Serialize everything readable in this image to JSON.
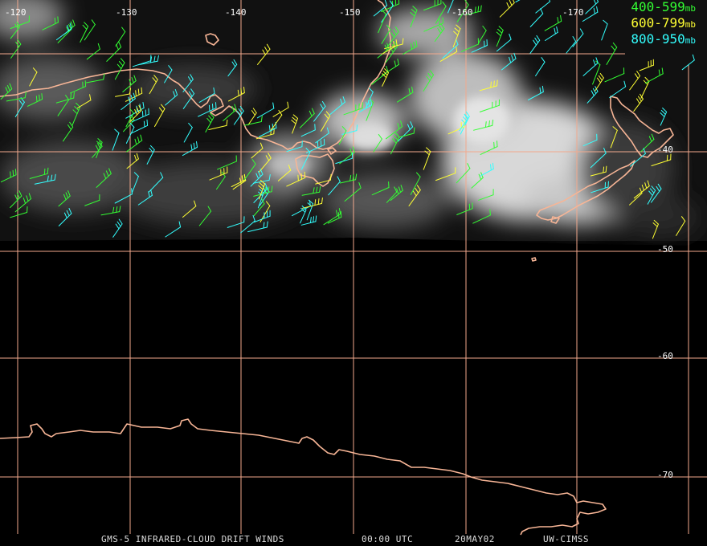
{
  "colors": {
    "grid": "#f2a98d",
    "coast": "#f7b596",
    "layer_400_599": "#33ff33",
    "layer_600_799": "#ffff33",
    "layer_800_950": "#33ffff"
  },
  "longitude_labels": [
    "-120",
    "-130",
    "-140",
    "-150",
    "-160",
    "-170"
  ],
  "latitude_labels": [
    "-40",
    "-50",
    "-60",
    "-70"
  ],
  "legend": [
    {
      "range": "400-599",
      "unit": "mb",
      "layer": "400_599"
    },
    {
      "range": "600-799",
      "unit": "mb",
      "layer": "600_799"
    },
    {
      "range": "800-950",
      "unit": "mb",
      "layer": "800_950"
    }
  ],
  "footer": {
    "product": "GMS-5 INFRARED-CLOUD DRIFT WINDS",
    "time": "00:00 UTC",
    "date": "20MAY02",
    "source": "UW-CIMSS"
  }
}
